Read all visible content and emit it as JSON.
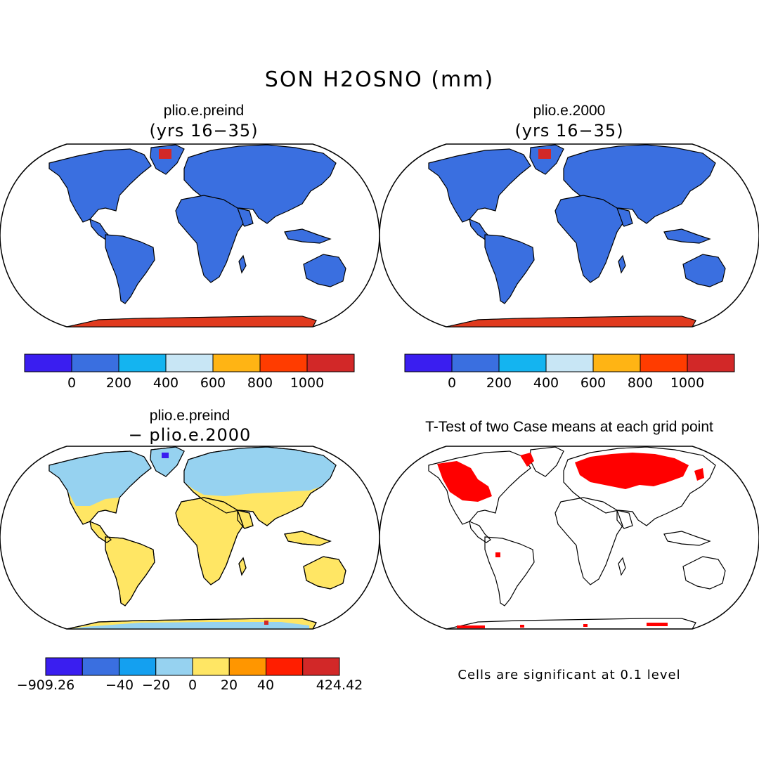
{
  "figure": {
    "title": "SON H2OSNO (mm)"
  },
  "panels": [
    {
      "title": "plio.e.preind",
      "subtitle": "(yrs 16−35)"
    },
    {
      "title": "plio.e.2000",
      "subtitle": "(yrs 16−35)"
    },
    {
      "title": "plio.e.preind",
      "subtitle": "− plio.e.2000"
    },
    {
      "title": "T-Test of two Case means at each grid point",
      "subtitle": ""
    }
  ],
  "colorbars": {
    "absolute": {
      "colors": [
        "#3a1ef0",
        "#3a6fe0",
        "#14b4f0",
        "#c8e6f5",
        "#ffb414",
        "#ff3c00",
        "#d22828"
      ],
      "tick_labels": [
        "0",
        "200",
        "400",
        "600",
        "800",
        "1000"
      ]
    },
    "difference": {
      "colors": [
        "#3a1ef0",
        "#3a6fe0",
        "#14a0f0",
        "#96d2f0",
        "#ffe664",
        "#ff9600",
        "#ff1e00",
        "#d22828"
      ],
      "tick_labels": [
        "−909.26",
        "−40",
        "−20",
        "0",
        "20",
        "40",
        "424.42"
      ]
    }
  },
  "colors": {
    "land_snow_abs": "#3a6fe0",
    "ice_high": "#e03a1e",
    "diff_pos": "#ffe664",
    "diff_neg": "#96d2f0",
    "significant": "#ff0000",
    "coast": "#000000"
  },
  "footnote": "Cells are significant at 0.1 level"
}
